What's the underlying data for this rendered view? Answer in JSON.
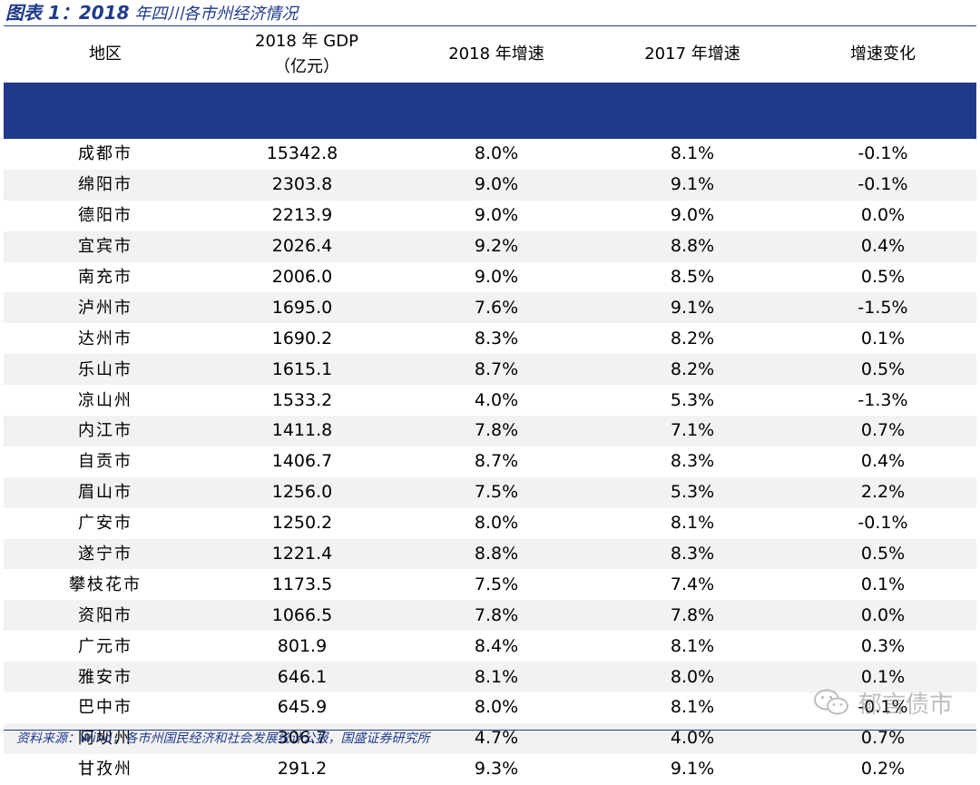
{
  "title": {
    "prefix": "图表 1：2018",
    "rest": " 年四川各市州经济情况"
  },
  "table": {
    "headers": {
      "region": "地区",
      "gdp": "2018 年 GDP（亿元）",
      "growth_2018": "2018 年增速",
      "growth_2017": "2017 年增速",
      "change": "增速变化"
    },
    "rows": [
      {
        "region": "成都市",
        "gdp": "15342.8",
        "g2018": "8.0%",
        "g2017": "8.1%",
        "change": "-0.1%"
      },
      {
        "region": "绵阳市",
        "gdp": "2303.8",
        "g2018": "9.0%",
        "g2017": "9.1%",
        "change": "-0.1%"
      },
      {
        "region": "德阳市",
        "gdp": "2213.9",
        "g2018": "9.0%",
        "g2017": "9.0%",
        "change": "0.0%"
      },
      {
        "region": "宜宾市",
        "gdp": "2026.4",
        "g2018": "9.2%",
        "g2017": "8.8%",
        "change": "0.4%"
      },
      {
        "region": "南充市",
        "gdp": "2006.0",
        "g2018": "9.0%",
        "g2017": "8.5%",
        "change": "0.5%"
      },
      {
        "region": "泸州市",
        "gdp": "1695.0",
        "g2018": "7.6%",
        "g2017": "9.1%",
        "change": "-1.5%"
      },
      {
        "region": "达州市",
        "gdp": "1690.2",
        "g2018": "8.3%",
        "g2017": "8.2%",
        "change": "0.1%"
      },
      {
        "region": "乐山市",
        "gdp": "1615.1",
        "g2018": "8.7%",
        "g2017": "8.2%",
        "change": "0.5%"
      },
      {
        "region": "凉山州",
        "gdp": "1533.2",
        "g2018": "4.0%",
        "g2017": "5.3%",
        "change": "-1.3%"
      },
      {
        "region": "内江市",
        "gdp": "1411.8",
        "g2018": "7.8%",
        "g2017": "7.1%",
        "change": "0.7%"
      },
      {
        "region": "自贡市",
        "gdp": "1406.7",
        "g2018": "8.7%",
        "g2017": "8.3%",
        "change": "0.4%"
      },
      {
        "region": "眉山市",
        "gdp": "1256.0",
        "g2018": "7.5%",
        "g2017": "5.3%",
        "change": "2.2%"
      },
      {
        "region": "广安市",
        "gdp": "1250.2",
        "g2018": "8.0%",
        "g2017": "8.1%",
        "change": "-0.1%"
      },
      {
        "region": "遂宁市",
        "gdp": "1221.4",
        "g2018": "8.8%",
        "g2017": "8.3%",
        "change": "0.5%"
      },
      {
        "region": "攀枝花市",
        "gdp": "1173.5",
        "g2018": "7.5%",
        "g2017": "7.4%",
        "change": "0.1%"
      },
      {
        "region": "资阳市",
        "gdp": "1066.5",
        "g2018": "7.8%",
        "g2017": "7.8%",
        "change": "0.0%"
      },
      {
        "region": "广元市",
        "gdp": "801.9",
        "g2018": "8.4%",
        "g2017": "8.1%",
        "change": "0.3%"
      },
      {
        "region": "雅安市",
        "gdp": "646.1",
        "g2018": "8.1%",
        "g2017": "8.0%",
        "change": "0.1%"
      },
      {
        "region": "巴中市",
        "gdp": "645.9",
        "g2018": "8.0%",
        "g2017": "8.1%",
        "change": "-0.1%"
      },
      {
        "region": "阿坝州",
        "gdp": "306.7",
        "g2018": "4.7%",
        "g2017": "4.0%",
        "change": "0.7%"
      },
      {
        "region": "甘孜州",
        "gdp": "291.2",
        "g2018": "9.3%",
        "g2017": "9.1%",
        "change": "0.2%"
      }
    ]
  },
  "source": "资料来源：Wind，各市州国民经济和社会发展统计公报，国盛证券研究所",
  "watermark": {
    "text": "郁言债市",
    "icon": "wechat-icon"
  },
  "colors": {
    "accent": "#1f3a8a",
    "stripe": "#f2f2f2"
  }
}
